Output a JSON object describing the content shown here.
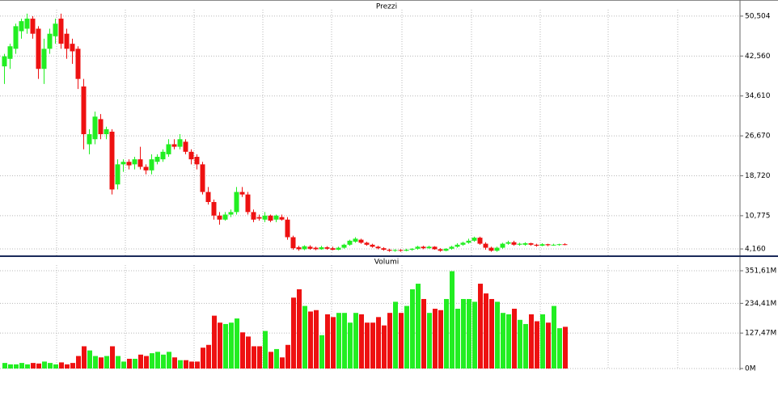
{
  "chart_data": [
    {
      "type": "candlestick",
      "title": "Prezzi",
      "open": [
        40.5,
        42,
        44,
        47.5,
        48,
        50,
        48,
        40,
        44,
        46.5,
        50,
        47,
        45,
        44,
        36.5,
        25,
        26,
        30,
        27,
        27.5,
        17,
        21,
        21.5,
        21,
        22,
        20.5,
        19.8,
        21.5,
        22,
        23,
        25,
        24.5,
        25.5,
        23.5,
        22.5,
        21,
        15.5,
        13.5,
        10.8,
        10,
        11,
        11.5,
        15.5,
        15,
        11.5,
        10.5,
        10,
        10.8,
        10,
        10.5,
        10,
        6.5,
        4.5,
        4.1,
        4.6,
        4.4,
        4.1,
        4.5,
        4.3,
        4.0,
        4.4,
        5.0,
        5.6,
        6.0,
        5.4,
        5.0,
        4.6,
        4.3,
        4.0,
        3.8,
        3.95,
        3.8,
        4.0,
        4.2,
        4.6,
        4.3,
        4.6,
        4.1,
        3.8,
        4.2,
        4.6,
        5.0,
        5.4,
        5.8,
        6.4,
        5.2,
        4.4,
        3.8,
        4.4,
        5.2,
        5.5,
        5.0,
        5.0,
        5.3,
        5.0,
        4.8,
        5.1,
        4.9,
        5.0,
        5.1
      ],
      "high": [
        43,
        45,
        49,
        50,
        51,
        50.5,
        48.5,
        46,
        48,
        50,
        51,
        48,
        46,
        44.5,
        38,
        28,
        31.5,
        31,
        28.5,
        28,
        22,
        22,
        22,
        22.5,
        24.5,
        21,
        23,
        23,
        24,
        26,
        26,
        27,
        26,
        24,
        23,
        21.5,
        16.5,
        14,
        11.5,
        11.5,
        12,
        16.5,
        16.5,
        15.5,
        12,
        11,
        11.5,
        11,
        11,
        11,
        10.5,
        6.8,
        4.8,
        4.9,
        4.9,
        4.6,
        4.8,
        4.7,
        4.6,
        4.6,
        5.2,
        6.0,
        6.5,
        6.2,
        5.6,
        5.2,
        4.8,
        4.5,
        4.2,
        4.1,
        4.1,
        4.2,
        4.3,
        4.8,
        4.8,
        4.8,
        4.7,
        4.3,
        4.3,
        4.8,
        5.3,
        5.6,
        6.2,
        6.6,
        6.6,
        5.5,
        4.6,
        4.6,
        5.4,
        5.8,
        5.8,
        5.4,
        5.5,
        5.4,
        5.2,
        5.3,
        5.2,
        5.2,
        5.2,
        5.3
      ],
      "low": [
        37,
        40,
        43,
        46,
        47,
        46,
        38,
        37,
        43,
        45,
        44,
        42,
        41,
        36,
        24,
        23,
        25,
        26,
        26,
        15,
        16,
        19.5,
        20,
        20,
        20,
        19,
        19,
        21,
        21.5,
        22.5,
        24,
        24,
        23,
        21,
        20,
        15,
        13,
        10,
        9,
        9.8,
        10.5,
        11,
        14.5,
        11,
        9.5,
        9.8,
        9.5,
        9.5,
        9.5,
        9.8,
        6,
        4,
        3.8,
        3.9,
        4.0,
        3.9,
        4.0,
        4.0,
        3.9,
        3.9,
        4.2,
        4.8,
        5.4,
        5.2,
        4.8,
        4.4,
        4.1,
        3.8,
        3.6,
        3.6,
        3.6,
        3.7,
        3.8,
        4.0,
        4.1,
        4.2,
        4.0,
        3.6,
        3.7,
        4.0,
        4.4,
        4.8,
        5.2,
        5.6,
        5.0,
        4.0,
        3.6,
        3.6,
        4.2,
        5.0,
        4.8,
        4.8,
        4.8,
        4.8,
        4.6,
        4.7,
        4.7,
        4.8,
        4.8,
        4.9
      ],
      "close": [
        42.5,
        44.5,
        48.5,
        49.5,
        50,
        47,
        40,
        44,
        47,
        49,
        45,
        44,
        43.5,
        38,
        27,
        27,
        30.5,
        27,
        28,
        16,
        21,
        21.5,
        20.8,
        22,
        20.5,
        19.8,
        22,
        22.5,
        23.5,
        25,
        24.5,
        26,
        23.5,
        22,
        21,
        15.5,
        13.5,
        10.8,
        10,
        11,
        11.5,
        15.5,
        15,
        11.5,
        10,
        10.2,
        10.8,
        9.8,
        10.8,
        10,
        6.5,
        4.3,
        4.1,
        4.7,
        4.2,
        4.1,
        4.5,
        4.2,
        4.0,
        4.4,
        5.0,
        5.8,
        6.2,
        5.4,
        5.0,
        4.6,
        4.3,
        4.0,
        3.8,
        3.95,
        3.8,
        4.0,
        4.2,
        4.6,
        4.3,
        4.6,
        4.1,
        3.8,
        4.2,
        4.6,
        5.0,
        5.4,
        5.8,
        6.4,
        5.2,
        4.4,
        3.8,
        4.4,
        5.2,
        5.5,
        5.0,
        5.2,
        5.3,
        5.0,
        4.8,
        5.1,
        4.9,
        5.0,
        5.1,
        5.0
      ],
      "up_color": "#22ee22",
      "down_color": "#ee1111",
      "ylim": [
        2.88,
        51.78
      ],
      "yticks": [
        {
          "value": 50.504,
          "label": "50,504"
        },
        {
          "value": 42.56,
          "label": "42,560"
        },
        {
          "value": 34.61,
          "label": "34,610"
        },
        {
          "value": 26.67,
          "label": "26,670"
        },
        {
          "value": 18.72,
          "label": "18,720"
        },
        {
          "value": 10.775,
          "label": "10,775"
        },
        {
          "value": 4.16,
          "label": "4,160"
        }
      ],
      "grid": true
    },
    {
      "type": "bar",
      "title": "Volumi",
      "values": [
        20,
        15,
        15,
        20,
        15,
        20,
        18,
        25,
        20,
        15,
        22,
        15,
        20,
        45,
        80,
        65,
        45,
        40,
        45,
        80,
        45,
        25,
        35,
        35,
        50,
        45,
        55,
        60,
        50,
        60,
        40,
        30,
        30,
        25,
        25,
        75,
        85,
        190,
        165,
        160,
        165,
        180,
        130,
        115,
        80,
        80,
        135,
        60,
        70,
        40,
        85,
        255,
        285,
        225,
        205,
        210,
        120,
        195,
        185,
        200,
        200,
        165,
        200,
        195,
        165,
        165,
        185,
        155,
        200,
        240,
        200,
        225,
        285,
        305,
        250,
        200,
        215,
        210,
        250,
        350,
        215,
        250,
        250,
        240,
        305,
        270,
        250,
        240,
        200,
        195,
        215,
        175,
        160,
        195,
        170,
        195,
        165,
        225,
        145,
        150
      ],
      "up_color": "#22ee22",
      "down_color": "#ee1111",
      "ylim": [
        0,
        372
      ],
      "yticks": [
        {
          "value": 351.61,
          "label": "351,61M"
        },
        {
          "value": 234.41,
          "label": "234,41M"
        },
        {
          "value": 127.47,
          "label": "127,47M"
        },
        {
          "value": 0,
          "label": "0M"
        }
      ],
      "grid": true
    }
  ]
}
